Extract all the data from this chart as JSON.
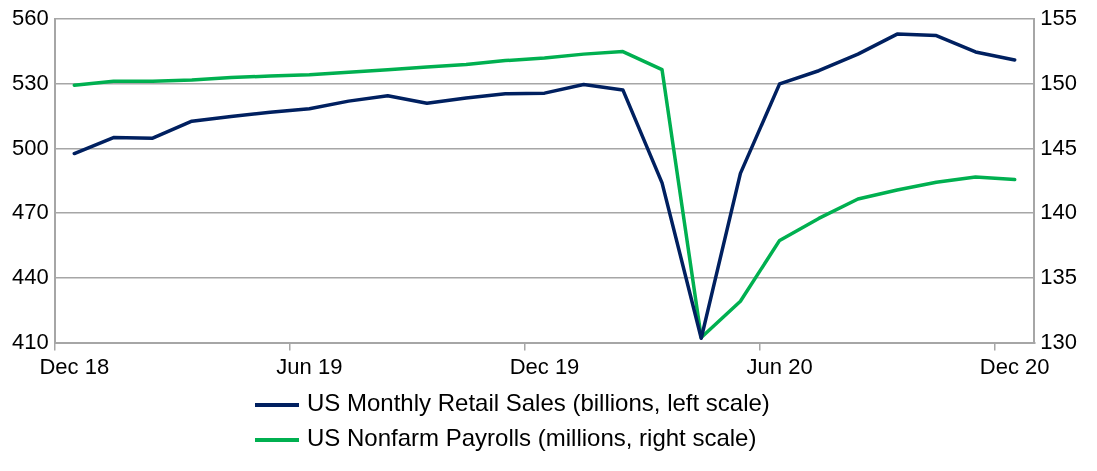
{
  "chart_data": {
    "type": "line",
    "categories": [
      "Dec 18",
      null,
      null,
      null,
      null,
      null,
      "Jun 19",
      null,
      null,
      null,
      null,
      null,
      "Dec 19",
      null,
      null,
      null,
      null,
      null,
      "Jun 20",
      null,
      null,
      null,
      null,
      null,
      "Dec 20"
    ],
    "series": [
      {
        "name": "US Monthly Retail Sales (billions, left scale)",
        "color": "#002060",
        "values": [
          497.7,
          505.1,
          504.8,
          512.7,
          514.9,
          516.8,
          518.5,
          522,
          524.5,
          521,
          523.5,
          525.4,
          525.7,
          529.7,
          527.2,
          484.1,
          412,
          488.5,
          530,
          536.1,
          543.8,
          553.1,
          552.4,
          544.8,
          541.1
        ]
      },
      {
        "name": "US Nonfarm Payrolls (millions, right scale)",
        "color": "#00b050",
        "axis": "y2",
        "values": [
          149.9,
          150.2,
          150.2,
          150.3,
          150.5,
          150.6,
          150.7,
          150.9,
          151.1,
          151.3,
          151.5,
          151.8,
          152,
          152.3,
          152.5,
          151.1,
          130.4,
          133.2,
          137.9,
          139.6,
          141.1,
          141.8,
          142.4,
          142.8,
          142.6
        ]
      }
    ],
    "ylim": [
      410,
      560
    ],
    "yticks": [
      410,
      440,
      470,
      500,
      530,
      560
    ],
    "y2lim": [
      130,
      155
    ],
    "y2ticks": [
      130,
      135,
      140,
      145,
      150,
      155
    ],
    "grid": "y",
    "legend": "bottom",
    "marker": "none",
    "line_style": "solid"
  }
}
